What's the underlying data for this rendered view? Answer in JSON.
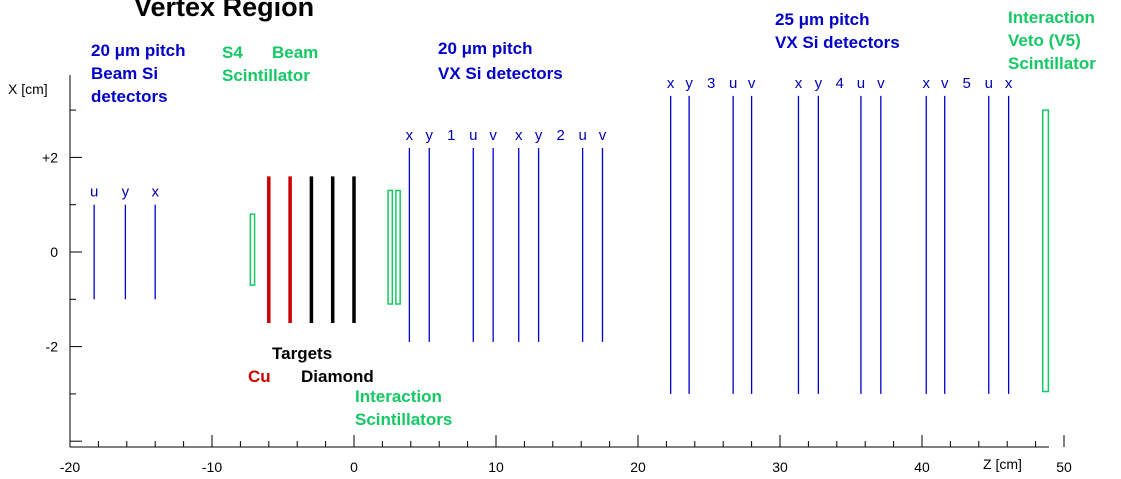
{
  "colors": {
    "blue": "#0000c8",
    "green": "#14c864",
    "red": "#cc0000",
    "black": "#000000"
  },
  "title": "Vertex Region",
  "annotations": {
    "beam_si": [
      "20 μm pitch",
      "Beam Si",
      "detectors"
    ],
    "s4": "S4",
    "beam_scint": [
      "Beam",
      "Scintillator"
    ],
    "vx_20": [
      "20 μm pitch",
      "VX Si detectors"
    ],
    "vx_25": [
      "25 μm pitch",
      "VX Si detectors"
    ],
    "veto": [
      "Interaction",
      "Veto (V5)",
      "Scintillator"
    ],
    "targets": "Targets",
    "cu": "Cu",
    "diamond": "Diamond",
    "int_scint": [
      "Interaction",
      "Scintillators"
    ]
  },
  "chart_data": {
    "type": "schematic",
    "title": "Vertex Region",
    "xlabel": "Z [cm]",
    "ylabel": "X [cm]",
    "xlim": [
      -20,
      50
    ],
    "ylim": [
      -4,
      3.5
    ],
    "x_ticks": [
      -20,
      -10,
      0,
      10,
      20,
      30,
      40,
      50
    ],
    "x_tick_labels": [
      "-20",
      "-10",
      "0",
      "10",
      "20",
      "30",
      "40",
      "50"
    ],
    "y_ticks": [
      2,
      0,
      -2
    ],
    "y_tick_labels": [
      "+2",
      "0",
      "-2"
    ],
    "beam_si_detectors": [
      {
        "label": "u",
        "z": -18.3,
        "x_min": -1.0,
        "x_max": 1.0
      },
      {
        "label": "y",
        "z": -16.1,
        "x_min": -1.0,
        "x_max": 1.0
      },
      {
        "label": "x",
        "z": -14.0,
        "x_min": -1.0,
        "x_max": 1.0
      }
    ],
    "s4_scintillator": {
      "z_min": -7.3,
      "z_max": -7.0,
      "x_min": -0.7,
      "x_max": 0.8
    },
    "targets": [
      {
        "material": "Cu",
        "z": -6.0,
        "x_min": -1.5,
        "x_max": 1.6
      },
      {
        "material": "Cu",
        "z": -4.5,
        "x_min": -1.5,
        "x_max": 1.6
      },
      {
        "material": "Diamond",
        "z": -3.0,
        "x_min": -1.5,
        "x_max": 1.6
      },
      {
        "material": "Diamond",
        "z": -1.5,
        "x_min": -1.5,
        "x_max": 1.6
      },
      {
        "material": "Diamond",
        "z": 0.0,
        "x_min": -1.5,
        "x_max": 1.6
      }
    ],
    "interaction_scintillators": [
      {
        "z_min": 2.4,
        "z_max": 2.7,
        "x_min": -1.1,
        "x_max": 1.3
      },
      {
        "z_min": 2.95,
        "z_max": 3.25,
        "x_min": -1.1,
        "x_max": 1.3
      }
    ],
    "vx_stations": [
      {
        "station": "1",
        "planes": [
          {
            "label": "x",
            "z": 3.9,
            "x_min": -1.9,
            "x_max": 2.2
          },
          {
            "label": "y",
            "z": 5.3,
            "x_min": -1.9,
            "x_max": 2.2
          },
          {
            "label": "u",
            "z": 8.4,
            "x_min": -1.9,
            "x_max": 2.2
          },
          {
            "label": "v",
            "z": 9.8,
            "x_min": -1.9,
            "x_max": 2.2
          }
        ]
      },
      {
        "station": "2",
        "planes": [
          {
            "label": "x",
            "z": 11.6,
            "x_min": -1.9,
            "x_max": 2.2
          },
          {
            "label": "y",
            "z": 13.0,
            "x_min": -1.9,
            "x_max": 2.2
          },
          {
            "label": "u",
            "z": 16.1,
            "x_min": -1.9,
            "x_max": 2.2
          },
          {
            "label": "v",
            "z": 17.5,
            "x_min": -1.9,
            "x_max": 2.2
          }
        ]
      },
      {
        "station": "3",
        "planes": [
          {
            "label": "x",
            "z": 22.3,
            "x_min": -3.0,
            "x_max": 3.3
          },
          {
            "label": "y",
            "z": 23.6,
            "x_min": -3.0,
            "x_max": 3.3
          },
          {
            "label": "u",
            "z": 26.7,
            "x_min": -3.0,
            "x_max": 3.3
          },
          {
            "label": "v",
            "z": 28.0,
            "x_min": -3.0,
            "x_max": 3.3
          }
        ]
      },
      {
        "station": "4",
        "planes": [
          {
            "label": "x",
            "z": 31.3,
            "x_min": -3.0,
            "x_max": 3.3
          },
          {
            "label": "y",
            "z": 32.7,
            "x_min": -3.0,
            "x_max": 3.3
          },
          {
            "label": "u",
            "z": 35.7,
            "x_min": -3.0,
            "x_max": 3.3
          },
          {
            "label": "v",
            "z": 37.1,
            "x_min": -3.0,
            "x_max": 3.3
          }
        ]
      },
      {
        "station": "5",
        "planes": [
          {
            "label": "x",
            "z": 40.3,
            "x_min": -3.0,
            "x_max": 3.3
          },
          {
            "label": "v",
            "z": 41.6,
            "x_min": -3.0,
            "x_max": 3.3
          },
          {
            "label": "u",
            "z": 44.7,
            "x_min": -3.0,
            "x_max": 3.3
          },
          {
            "label": "x",
            "z": 46.1,
            "x_min": -3.0,
            "x_max": 3.3
          }
        ]
      }
    ],
    "veto_scintillator": {
      "z_min": 48.5,
      "z_max": 48.9,
      "x_min": -2.95,
      "x_max": 3.0
    }
  }
}
